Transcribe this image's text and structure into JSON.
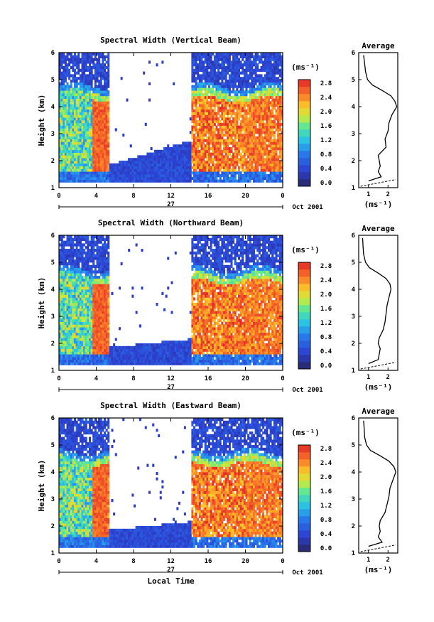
{
  "chart_data": [
    {
      "type": "heatmap",
      "title": "Spectral Width (Vertical Beam)",
      "ylabel": "Height (km)",
      "x_ticks": [
        "0",
        "4",
        "8",
        "12",
        "16",
        "20",
        "0"
      ],
      "y_ticks": [
        "1",
        "2",
        "3",
        "4",
        "5",
        "6"
      ],
      "xlim": [
        0,
        24
      ],
      "ylim": [
        1,
        6
      ],
      "day_label": "27",
      "date_label": "Oct 2001",
      "xlabel": "",
      "colorbar": {
        "unit": "(ms⁻¹)",
        "tick_labels": [
          "0.0",
          "0.4",
          "0.8",
          "1.2",
          "1.6",
          "2.0",
          "2.4",
          "2.8"
        ],
        "range": [
          0,
          3.0
        ]
      },
      "average_profile": {
        "title": "Average",
        "xlabel": "(ms⁻¹)",
        "x_ticks": [
          "1",
          "2"
        ],
        "y_ticks": [
          "1",
          "2",
          "3",
          "4",
          "5",
          "6"
        ],
        "xlim": [
          0.5,
          2.5
        ],
        "height": [
          1.25,
          1.4,
          1.6,
          1.8,
          2.0,
          2.2,
          2.5,
          2.8,
          3.1,
          3.4,
          3.7,
          4.0,
          4.2,
          4.4,
          4.6,
          4.8,
          5.0,
          5.3,
          5.6,
          5.9
        ],
        "width": [
          1.0,
          1.65,
          1.5,
          1.6,
          1.55,
          1.5,
          1.9,
          1.85,
          2.0,
          2.05,
          2.2,
          2.45,
          2.35,
          2.15,
          1.7,
          1.2,
          0.95,
          0.85,
          0.8,
          0.75
        ]
      }
    },
    {
      "type": "heatmap",
      "title": "Spectral Width (Northward Beam)",
      "ylabel": "Height (km)",
      "x_ticks": [
        "0",
        "4",
        "8",
        "12",
        "16",
        "20",
        "0"
      ],
      "y_ticks": [
        "1",
        "2",
        "3",
        "4",
        "5",
        "6"
      ],
      "xlim": [
        0,
        24
      ],
      "ylim": [
        1,
        6
      ],
      "day_label": "27",
      "date_label": "Oct 2001",
      "xlabel": "",
      "colorbar": {
        "unit": "(ms⁻¹)",
        "tick_labels": [
          "0.0",
          "0.4",
          "0.8",
          "1.2",
          "1.6",
          "2.0",
          "2.4",
          "2.8"
        ],
        "range": [
          0,
          3.0
        ]
      },
      "average_profile": {
        "title": "Average",
        "xlabel": "(ms⁻¹)",
        "x_ticks": [
          "1",
          "2"
        ],
        "y_ticks": [
          "1",
          "2",
          "3",
          "4",
          "5",
          "6"
        ],
        "xlim": [
          0.5,
          2.5
        ],
        "height": [
          1.25,
          1.4,
          1.6,
          1.8,
          2.0,
          2.2,
          2.5,
          2.8,
          3.1,
          3.4,
          3.7,
          4.0,
          4.2,
          4.4,
          4.6,
          4.8,
          5.0,
          5.3,
          5.6,
          5.9
        ],
        "width": [
          1.0,
          1.5,
          1.55,
          1.6,
          1.5,
          1.55,
          1.75,
          1.85,
          1.9,
          1.95,
          2.05,
          2.15,
          2.1,
          1.9,
          1.5,
          1.05,
          0.85,
          0.75,
          0.72,
          0.7
        ]
      }
    },
    {
      "type": "heatmap",
      "title": "Spectral Width (Eastward Beam)",
      "ylabel": "Height (km)",
      "x_ticks": [
        "0",
        "4",
        "8",
        "12",
        "16",
        "20",
        "0"
      ],
      "y_ticks": [
        "1",
        "2",
        "3",
        "4",
        "5",
        "6"
      ],
      "xlim": [
        0,
        24
      ],
      "ylim": [
        1,
        6
      ],
      "day_label": "27",
      "date_label": "Oct 2001",
      "xlabel": "Local Time",
      "colorbar": {
        "unit": "(ms⁻¹)",
        "tick_labels": [
          "0.0",
          "0.4",
          "0.8",
          "1.2",
          "1.6",
          "2.0",
          "2.4",
          "2.8"
        ],
        "range": [
          0,
          3.0
        ]
      },
      "average_profile": {
        "title": "Average",
        "xlabel": "(ms⁻¹)",
        "x_ticks": [
          "1",
          "2"
        ],
        "y_ticks": [
          "1",
          "2",
          "3",
          "4",
          "5",
          "6"
        ],
        "xlim": [
          0.5,
          2.5
        ],
        "height": [
          1.25,
          1.4,
          1.6,
          1.8,
          2.0,
          2.2,
          2.5,
          2.8,
          3.1,
          3.4,
          3.7,
          4.0,
          4.2,
          4.4,
          4.6,
          4.8,
          5.0,
          5.3,
          5.6,
          5.9
        ],
        "width": [
          1.0,
          1.7,
          1.5,
          1.6,
          1.55,
          1.6,
          1.85,
          1.95,
          2.05,
          2.1,
          2.25,
          2.4,
          2.3,
          2.05,
          1.6,
          1.1,
          0.9,
          0.8,
          0.78,
          0.75
        ]
      }
    }
  ]
}
